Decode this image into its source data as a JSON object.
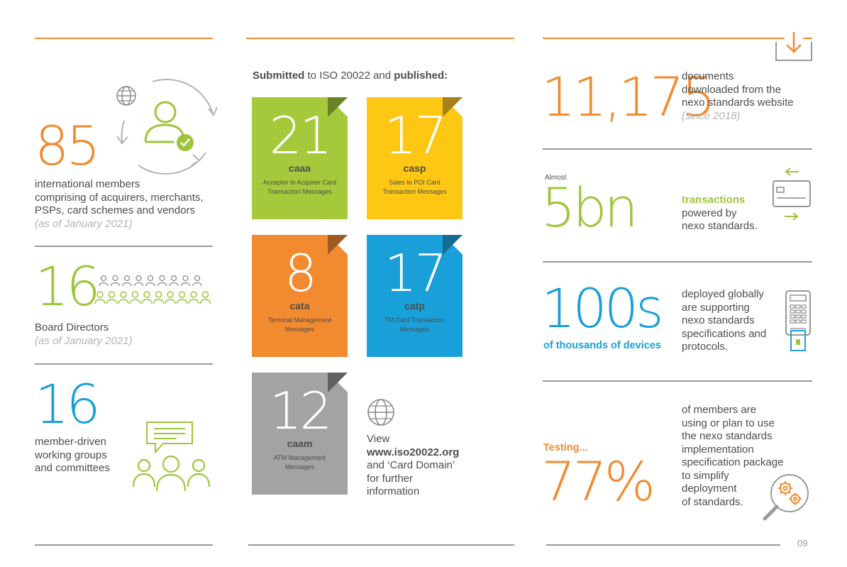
{
  "col1": {
    "members": {
      "number": "85",
      "desc": [
        "international members",
        "comprising of acquirers, merchants,",
        "PSPs, card schemes and vendors"
      ],
      "note": "(as of January 2021)"
    },
    "board": {
      "number": "16",
      "desc": "Board Directors",
      "note": "(as of January 2021)"
    },
    "groups": {
      "number": "16",
      "desc": [
        "member-driven",
        "working groups",
        "and committees"
      ]
    }
  },
  "col2": {
    "heading": {
      "bold1": "Submitted",
      "mid": " to ISO 20022 and ",
      "bold2": "published:"
    },
    "docs": [
      {
        "number": "21",
        "code": "caaa",
        "desc": "Acceptor to Acquirer Card Transaction Messages",
        "color": "#a6c93c",
        "fold": "#6b8224"
      },
      {
        "number": "17",
        "code": "casp",
        "desc": "Sales to POI Card Transaction Messages",
        "color": "#fec713",
        "fold": "#a5801b"
      },
      {
        "number": "8",
        "code": "cata",
        "desc": "Terminal Management Messages",
        "color": "#f28b30",
        "fold": "#9e5a23"
      },
      {
        "number": "17",
        "code": "catp",
        "desc": "TM Card Transaction Messages",
        "color": "#1aa0d8",
        "fold": "#146c90"
      },
      {
        "number": "12",
        "code": "caam",
        "desc": "ATM Management Messages",
        "color": "#a3a3a3",
        "fold": "#616161"
      }
    ],
    "view": {
      "line1": "View",
      "url": "www.iso20022.org",
      "rest": [
        "and ‘Card Domain’",
        "for further",
        "information"
      ]
    }
  },
  "col3": {
    "downloads": {
      "number": "11,175",
      "desc": [
        "documents",
        "downloaded from the",
        "nexo standards website"
      ],
      "note": "(since 2018)"
    },
    "transactions": {
      "prefix": "Almost",
      "number": "5bn",
      "highlight": "transactions",
      "desc": [
        "powered by",
        "nexo standards."
      ]
    },
    "devices": {
      "number": "100s",
      "sub": "of thousands of devices",
      "desc": [
        "deployed globally",
        "are supporting",
        "nexo standards",
        "specifications and",
        "protocols."
      ]
    },
    "testing": {
      "label": "Testing...",
      "number": "77%",
      "desc": [
        "of members are",
        "using or plan to use",
        "the nexo standards",
        "implementation",
        "specification package",
        "to simplify",
        "deployment",
        "of standards."
      ]
    },
    "page_number": "09"
  },
  "colors": {
    "orange": "#f28b30",
    "green": "#9dc63b",
    "blue": "#1aa0d8",
    "grey": "#9a9a9a"
  },
  "icons": [
    "globe-icon",
    "user-check-icon",
    "cycle-arrows-icon",
    "people-group-icon",
    "chat-bubble-icon",
    "globe-icon",
    "download-icon",
    "card-transfer-icon",
    "payment-terminal-icon",
    "magnifier-gears-icon"
  ]
}
